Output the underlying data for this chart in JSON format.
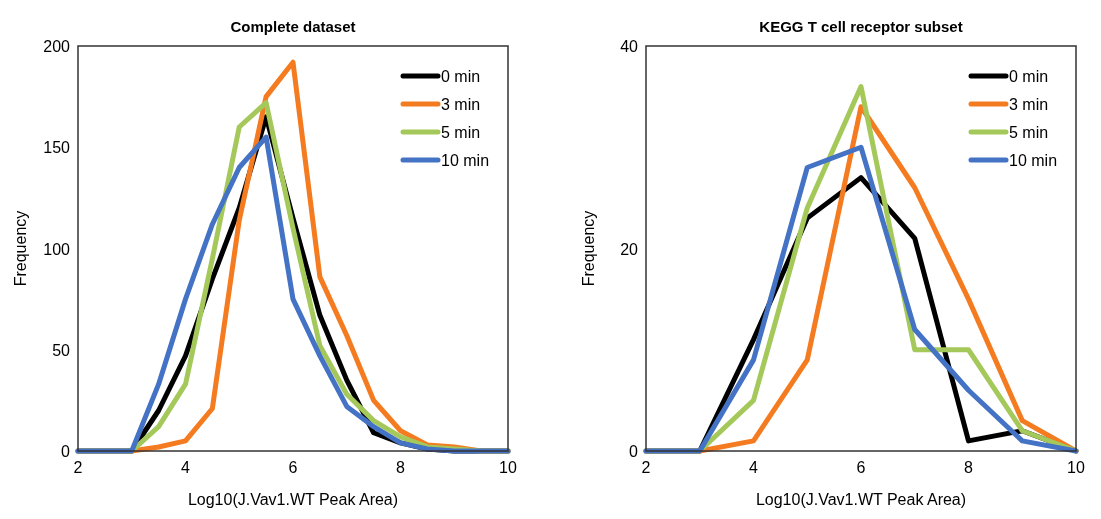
{
  "chart_data": [
    {
      "type": "line",
      "title": "Complete dataset",
      "xlabel": "Log10(J.Vav1.WT Peak Area)",
      "ylabel": "Frequency",
      "x": [
        2,
        2.5,
        3,
        3.5,
        4,
        4.5,
        5,
        5.5,
        6,
        6.5,
        7,
        7.5,
        8,
        8.5,
        9,
        9.5,
        10
      ],
      "xlim": [
        2,
        10
      ],
      "xticks": [
        2,
        4,
        6,
        8,
        10
      ],
      "ylim": [
        0,
        200
      ],
      "yticks": [
        0,
        50,
        100,
        150,
        200
      ],
      "legend": "top right",
      "grid": false,
      "marker": "none",
      "line_style": "solid",
      "series": [
        {
          "name": "0 min",
          "color": "#000000",
          "values": [
            0,
            0,
            0,
            20,
            47,
            85,
            120,
            165,
            115,
            67,
            35,
            9,
            4,
            1,
            0,
            0,
            0
          ]
        },
        {
          "name": "3 min",
          "color": "#f47b20",
          "values": [
            0,
            0,
            0,
            2,
            5,
            21,
            114,
            175,
            192,
            86,
            57,
            25,
            10,
            3,
            2,
            0,
            0
          ]
        },
        {
          "name": "5 min",
          "color": "#a5c85a",
          "values": [
            0,
            0,
            0,
            12,
            33,
            95,
            160,
            172,
            110,
            52,
            28,
            15,
            7,
            2,
            1,
            0,
            0
          ]
        },
        {
          "name": "10 min",
          "color": "#4472c4",
          "values": [
            0,
            0,
            0,
            33,
            75,
            112,
            140,
            155,
            75,
            47,
            22,
            12,
            4,
            1,
            0,
            0,
            0
          ]
        }
      ]
    },
    {
      "type": "line",
      "title": "KEGG T cell receptor subset",
      "xlabel": "Log10(J.Vav1.WT Peak Area)",
      "ylabel": "Frequency",
      "x": [
        2,
        3,
        4,
        5,
        6,
        7,
        8,
        9,
        10
      ],
      "xlim": [
        2,
        10
      ],
      "xticks": [
        2,
        4,
        6,
        8,
        10
      ],
      "ylim": [
        0,
        40
      ],
      "yticks": [
        0,
        20,
        40
      ],
      "legend": "top right",
      "grid": false,
      "marker": "none",
      "line_style": "solid",
      "series": [
        {
          "name": "0 min",
          "color": "#000000",
          "values": [
            0,
            0,
            11,
            23,
            27,
            21,
            1,
            2,
            0
          ]
        },
        {
          "name": "3 min",
          "color": "#f47b20",
          "values": [
            0,
            0,
            1,
            9,
            34,
            26,
            15,
            3,
            0
          ]
        },
        {
          "name": "5 min",
          "color": "#a5c85a",
          "values": [
            0,
            0,
            5,
            24,
            36,
            10,
            10,
            2,
            0
          ]
        },
        {
          "name": "10 min",
          "color": "#4472c4",
          "values": [
            0,
            0,
            9,
            28,
            30,
            12,
            6,
            1,
            0
          ]
        }
      ]
    }
  ]
}
